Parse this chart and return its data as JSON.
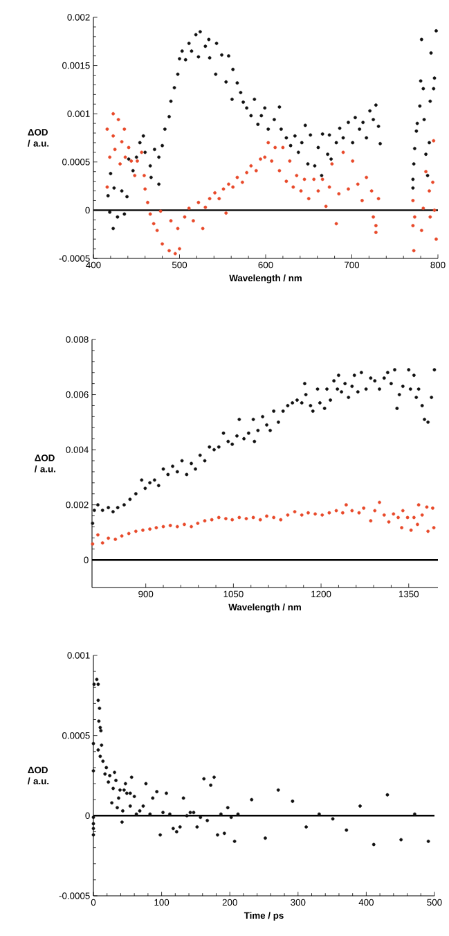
{
  "chart_data": [
    {
      "type": "scatter",
      "xlabel": "Wavelength / nm",
      "ylabel": "ΔOD / a.u.",
      "xlim": [
        400,
        800
      ],
      "ylim": [
        -0.0005,
        0.002
      ],
      "xticks": [
        400,
        500,
        600,
        700,
        800
      ],
      "yticks": [
        -0.0005,
        0,
        0.0005,
        0.001,
        0.0015,
        0.002
      ],
      "marker": "circle",
      "grid": false,
      "ref_lines": [
        {
          "axis": "y",
          "value": 0,
          "color": "#000000"
        }
      ],
      "series": [
        {
          "color": "#111111",
          "x": [
            417,
            419,
            423,
            420,
            424,
            428,
            436,
            433,
            439,
            441,
            446,
            450,
            454,
            458,
            460,
            466,
            467,
            471,
            476,
            476,
            480,
            483,
            488,
            490,
            494,
            498,
            500,
            503,
            507,
            511,
            514,
            519,
            522,
            524,
            530,
            534,
            535,
            542,
            543,
            549,
            554,
            557,
            561,
            562,
            567,
            571,
            574,
            578,
            583,
            587,
            591,
            595,
            599,
            603,
            610,
            616,
            618,
            624,
            629,
            634,
            638,
            642,
            646,
            649,
            652,
            657,
            661,
            665,
            666,
            672,
            674,
            676,
            682,
            686,
            690,
            696,
            701,
            704,
            709,
            713,
            717,
            721,
            725,
            728,
            731,
            733,
            771,
            771,
            772,
            773,
            775,
            776,
            779,
            780,
            781,
            783,
            784,
            786,
            788,
            790,
            791,
            792,
            795,
            796,
            798
          ],
          "values": [
            0.00015,
            -2e-05,
            -0.00019,
            0.00038,
            0.00023,
            -7e-05,
            -4e-05,
            0.0002,
            0.00014,
            0.00053,
            0.00041,
            0.00055,
            0.0007,
            0.00077,
            0.0006,
            0.00046,
            0.00034,
            0.00063,
            0.00027,
            0.00055,
            0.00067,
            0.00084,
            0.00097,
            0.00113,
            0.00127,
            0.00141,
            0.00157,
            0.00165,
            0.00156,
            0.00173,
            0.00165,
            0.00182,
            0.00159,
            0.00185,
            0.0017,
            0.00177,
            0.00158,
            0.00141,
            0.00173,
            0.00161,
            0.00133,
            0.0016,
            0.00115,
            0.00146,
            0.00132,
            0.00122,
            0.00112,
            0.00106,
            0.00098,
            0.00115,
            0.00089,
            0.00098,
            0.00106,
            0.00084,
            0.00094,
            0.00107,
            0.00084,
            0.00075,
            0.00067,
            0.00077,
            0.0006,
            0.0007,
            0.00088,
            0.00048,
            0.00078,
            0.00046,
            0.00065,
            0.00036,
            0.00079,
            0.00058,
            0.00078,
            0.00053,
            0.0007,
            0.00085,
            0.00075,
            0.00091,
            0.0007,
            0.00096,
            0.00084,
            0.00091,
            0.00075,
            0.00103,
            0.00094,
            0.00109,
            0.00087,
            0.00069,
            0.00023,
            0.00032,
            0.00048,
            0.00064,
            0.00082,
            0.0009,
            0.00108,
            0.00134,
            0.00177,
            0.00126,
            0.00094,
            0.00058,
            0.00036,
            0.0007,
            0.00113,
            0.00163,
            0.00126,
            0.00137,
            0.00186
          ]
        },
        {
          "color": "#e8492a",
          "x": [
            416,
            416,
            419,
            423,
            423,
            425,
            429,
            431,
            433,
            436,
            437,
            441,
            444,
            448,
            451,
            456,
            459,
            460,
            463,
            466,
            470,
            474,
            478,
            480,
            488,
            495,
            500,
            490,
            498,
            506,
            511,
            516,
            522,
            527,
            530,
            535,
            541,
            546,
            551,
            554,
            557,
            562,
            567,
            573,
            578,
            583,
            589,
            594,
            599,
            603,
            607,
            611,
            616,
            620,
            624,
            628,
            632,
            636,
            641,
            645,
            650,
            656,
            661,
            666,
            670,
            674,
            677,
            682,
            685,
            690,
            696,
            701,
            707,
            712,
            717,
            723,
            725,
            728,
            731,
            728,
            771,
            771,
            773,
            772,
            781,
            783,
            786,
            790,
            791,
            794,
            795,
            796,
            798
          ],
          "values": [
            0.00084,
            0.00024,
            0.00055,
            0.001,
            0.00077,
            0.00063,
            0.00094,
            0.00048,
            0.00071,
            0.00084,
            0.00055,
            0.00065,
            0.00051,
            0.00036,
            0.00051,
            0.0006,
            0.00036,
            0.00022,
            8e-05,
            -4e-05,
            -0.00014,
            -0.00021,
            -1e-05,
            -0.00035,
            -0.00042,
            -0.00045,
            -0.0004,
            -0.00011,
            -0.00019,
            -7e-05,
            2e-05,
            -0.00011,
            8e-05,
            -0.00019,
            3e-05,
            0.00012,
            0.00018,
            0.00012,
            0.00022,
            -3e-05,
            0.00027,
            0.00024,
            0.00034,
            0.00029,
            0.00039,
            0.00046,
            0.00041,
            0.00053,
            0.00055,
            0.0007,
            0.00051,
            0.00065,
            0.00041,
            0.00065,
            0.0003,
            0.00051,
            0.00024,
            0.00036,
            0.0002,
            0.00032,
            0.00012,
            0.00032,
            0.0002,
            0.00032,
            4e-05,
            0.00024,
            0.00048,
            -0.00014,
            0.00017,
            0.0006,
            0.00022,
            0.00051,
            0.00027,
            0.0001,
            0.00034,
            0.0002,
            -7e-05,
            -0.00016,
            0.00012,
            -0.00023,
            0.0001,
            -0.00016,
            -7e-05,
            -0.00042,
            -0.00021,
            2e-05,
            0.0004,
            0.0002,
            -7e-05,
            0.00029,
            0.00072,
            0,
            -0.0003
          ]
        }
      ]
    },
    {
      "type": "scatter",
      "xlabel": "Wavelength / nm",
      "ylabel": "ΔOD / a.u.",
      "xlim": [
        808,
        1400
      ],
      "ylim": [
        -0.001,
        0.008
      ],
      "xticks": [
        900,
        1050,
        1200,
        1350
      ],
      "yticks": [
        0,
        0.002,
        0.004,
        0.006,
        0.008
      ],
      "marker": "circle",
      "grid": false,
      "ref_lines": [
        {
          "axis": "y",
          "value": 0,
          "color": "#000000"
        }
      ],
      "series": [
        {
          "color": "#111111",
          "x": [
            809,
            812,
            818,
            826,
            836,
            844,
            852,
            863,
            873,
            883,
            893,
            899,
            907,
            915,
            922,
            930,
            938,
            946,
            954,
            962,
            970,
            978,
            985,
            993,
            1001,
            1009,
            1017,
            1025,
            1033,
            1041,
            1048,
            1056,
            1060,
            1068,
            1076,
            1084,
            1086,
            1092,
            1100,
            1107,
            1113,
            1119,
            1127,
            1135,
            1143,
            1151,
            1159,
            1167,
            1172,
            1174,
            1182,
            1186,
            1194,
            1198,
            1206,
            1210,
            1216,
            1222,
            1228,
            1230,
            1235,
            1241,
            1247,
            1253,
            1257,
            1263,
            1269,
            1277,
            1285,
            1292,
            1300,
            1308,
            1314,
            1320,
            1326,
            1330,
            1334,
            1340,
            1350,
            1353,
            1359,
            1363,
            1367,
            1373,
            1377,
            1383,
            1389,
            1394
          ],
          "values": [
            0.00133,
            0.0018,
            0.002,
            0.0018,
            0.0019,
            0.00175,
            0.0019,
            0.002,
            0.0022,
            0.0024,
            0.0029,
            0.0026,
            0.0028,
            0.0029,
            0.0027,
            0.0033,
            0.0031,
            0.0034,
            0.0032,
            0.0036,
            0.0031,
            0.0035,
            0.0033,
            0.0038,
            0.0036,
            0.0041,
            0.004,
            0.0041,
            0.0046,
            0.0043,
            0.0042,
            0.0045,
            0.0051,
            0.0044,
            0.0046,
            0.0051,
            0.0043,
            0.0047,
            0.0052,
            0.0049,
            0.0047,
            0.0054,
            0.005,
            0.0054,
            0.0056,
            0.0057,
            0.0058,
            0.0057,
            0.0064,
            0.006,
            0.0056,
            0.0054,
            0.0062,
            0.0057,
            0.0055,
            0.0062,
            0.0058,
            0.0065,
            0.0062,
            0.0067,
            0.0061,
            0.0064,
            0.0059,
            0.0063,
            0.0067,
            0.0061,
            0.0068,
            0.0062,
            0.0066,
            0.0065,
            0.0062,
            0.0066,
            0.0068,
            0.0064,
            0.0069,
            0.0055,
            0.006,
            0.0063,
            0.0069,
            0.0062,
            0.0067,
            0.0059,
            0.0062,
            0.0056,
            0.0051,
            0.005,
            0.0059,
            0.0069
          ]
        },
        {
          "color": "#e8492a",
          "x": [
            809,
            818,
            826,
            836,
            848,
            859,
            871,
            883,
            895,
            907,
            918,
            930,
            942,
            954,
            966,
            978,
            989,
            1001,
            1013,
            1025,
            1037,
            1048,
            1060,
            1072,
            1084,
            1096,
            1107,
            1119,
            1131,
            1143,
            1155,
            1167,
            1178,
            1190,
            1202,
            1214,
            1226,
            1237,
            1243,
            1253,
            1265,
            1273,
            1285,
            1292,
            1300,
            1308,
            1316,
            1324,
            1332,
            1338,
            1340,
            1348,
            1354,
            1359,
            1365,
            1367,
            1373,
            1381,
            1383,
            1391,
            1393
          ],
          "values": [
            0.00058,
            0.00091,
            0.00062,
            0.00079,
            0.00075,
            0.00087,
            0.00096,
            0.00104,
            0.00108,
            0.00112,
            0.00117,
            0.00121,
            0.00125,
            0.00121,
            0.00129,
            0.00121,
            0.00133,
            0.00142,
            0.00146,
            0.00154,
            0.0015,
            0.00146,
            0.00154,
            0.0015,
            0.00154,
            0.00146,
            0.00159,
            0.00154,
            0.00146,
            0.00163,
            0.00175,
            0.00163,
            0.00171,
            0.00167,
            0.00163,
            0.00171,
            0.00179,
            0.00171,
            0.002,
            0.00179,
            0.00171,
            0.00188,
            0.00142,
            0.00179,
            0.00209,
            0.00163,
            0.00138,
            0.00167,
            0.00154,
            0.00117,
            0.00179,
            0.00154,
            0.00108,
            0.00154,
            0.00129,
            0.002,
            0.00163,
            0.00192,
            0.00104,
            0.00188,
            0.00117
          ]
        }
      ]
    },
    {
      "type": "scatter",
      "xlabel": "Time / ps",
      "ylabel": "ΔOD / a.u.",
      "xlim": [
        0,
        500
      ],
      "ylim": [
        -0.0005,
        0.001
      ],
      "xticks": [
        0,
        100,
        200,
        300,
        400,
        500
      ],
      "yticks": [
        -0.0005,
        0,
        0.0005,
        0.001
      ],
      "marker": "circle",
      "grid": false,
      "ref_lines": [
        {
          "axis": "y",
          "value": 0,
          "color": "#000000"
        }
      ],
      "series": [
        {
          "color": "#111111",
          "x": [
            0,
            0,
            0,
            0,
            0,
            0,
            1,
            5,
            7,
            7,
            9,
            8,
            10,
            11,
            7,
            12,
            10,
            14,
            17,
            19,
            24,
            22,
            27,
            29,
            31,
            33,
            35,
            37,
            39,
            42,
            43,
            45,
            47,
            49,
            54,
            56,
            54,
            60,
            63,
            68,
            73,
            77,
            83,
            87,
            93,
            98,
            102,
            107,
            112,
            117,
            122,
            127,
            132,
            137,
            142,
            147,
            152,
            157,
            162,
            167,
            172,
            177,
            182,
            187,
            192,
            197,
            202,
            207,
            212,
            232,
            252,
            271,
            292,
            312,
            331,
            351,
            371,
            391,
            411,
            431,
            451,
            471,
            491
          ],
          "values": [
            0.00045,
            0.00028,
            -1e-05,
            -5e-05,
            -8e-05,
            -0.00012,
            0.00082,
            0.00085,
            0.00082,
            0.00072,
            0.00067,
            0.00059,
            0.00055,
            0.00053,
            0.00041,
            0.00044,
            0.00037,
            0.00034,
            0.00026,
            0.0003,
            0.00025,
            0.00021,
            8e-05,
            0.00017,
            0.00027,
            0.00022,
            5e-05,
            0.00011,
            0.00016,
            -4e-05,
            3e-05,
            0.00016,
            0.0002,
            0.00014,
            6e-05,
            0.00024,
            0.00014,
            0.00012,
            1e-05,
            3e-05,
            6e-05,
            0.0002,
            1e-05,
            0.00011,
            0.00015,
            -0.00012,
            2e-05,
            0.00014,
            1e-05,
            -8e-05,
            -0.0001,
            -7e-05,
            0.00011,
            0,
            2e-05,
            2e-05,
            -7e-05,
            -1e-05,
            0.00023,
            -3e-05,
            0.00019,
            0.00024,
            -0.00012,
            1e-05,
            -0.00011,
            5e-05,
            -1e-05,
            -0.00016,
            1e-05,
            0.0001,
            -0.00014,
            0.00016,
            9e-05,
            -7e-05,
            1e-05,
            -2e-05,
            -9e-05,
            6e-05,
            -0.00018,
            0.00013,
            -0.00015,
            1e-05,
            -0.00016
          ]
        }
      ]
    }
  ]
}
